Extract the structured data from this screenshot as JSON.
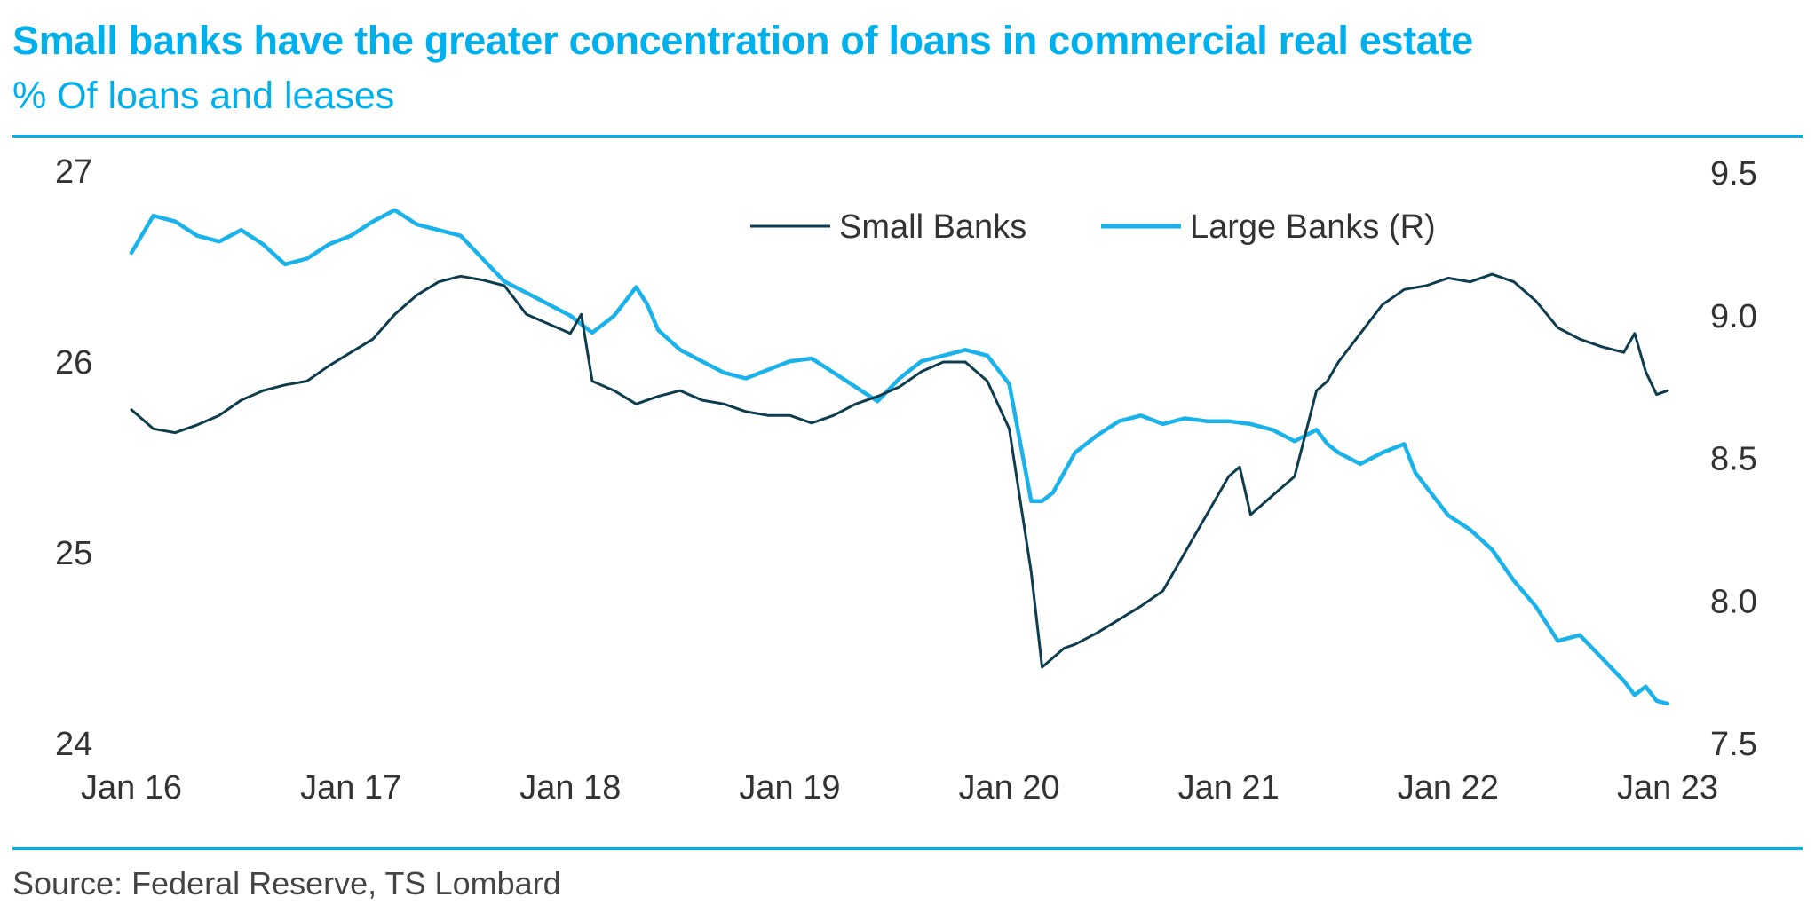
{
  "header": {
    "title": "Small banks have the greater concentration of loans in commercial real estate",
    "subtitle": "% Of loans and leases"
  },
  "footer": {
    "source": "Source: Federal Reserve, TS Lombard"
  },
  "colors": {
    "accent": "#00b0ec",
    "small_banks": "#0e3d4f",
    "large_banks": "#1ab2ea",
    "text": "#333333"
  },
  "chart_data": {
    "type": "line",
    "title": "Small banks have the greater concentration of loans in commercial real estate",
    "subtitle": "% Of loans and leases",
    "grid": false,
    "legend": {
      "placement": "top-center",
      "entries": [
        "Small Banks",
        "Large Banks (R)"
      ]
    },
    "x_axis": {
      "start": 2016.0,
      "end": 2023.0,
      "ticks": [
        2016,
        2017,
        2018,
        2019,
        2020,
        2021,
        2022,
        2023
      ],
      "tick_labels": [
        "Jan 16",
        "Jan 17",
        "Jan 18",
        "Jan 19",
        "Jan 20",
        "Jan 21",
        "Jan 22",
        "Jan 23"
      ]
    },
    "y_left": {
      "range": [
        24,
        27
      ],
      "ticks": [
        24,
        25,
        26,
        27
      ],
      "tick_labels": [
        "24",
        "25",
        "26",
        "27"
      ]
    },
    "y_right": {
      "range": [
        7.5,
        9.5
      ],
      "ticks": [
        7.5,
        8.0,
        8.5,
        9.0,
        9.5
      ],
      "tick_labels": [
        "7.5",
        "8.0",
        "8.5",
        "9.0",
        "9.5"
      ]
    },
    "series": [
      {
        "name": "Small Banks",
        "axis": "left",
        "x": [
          2016.0,
          2016.1,
          2016.2,
          2016.3,
          2016.4,
          2016.5,
          2016.6,
          2016.7,
          2016.8,
          2016.9,
          2017.0,
          2017.1,
          2017.2,
          2017.3,
          2017.4,
          2017.5,
          2017.6,
          2017.7,
          2017.8,
          2017.9,
          2018.0,
          2018.05,
          2018.1,
          2018.2,
          2018.3,
          2018.4,
          2018.5,
          2018.6,
          2018.7,
          2018.8,
          2018.9,
          2019.0,
          2019.1,
          2019.2,
          2019.3,
          2019.4,
          2019.5,
          2019.6,
          2019.7,
          2019.8,
          2019.9,
          2020.0,
          2020.1,
          2020.15,
          2020.2,
          2020.25,
          2020.3,
          2020.4,
          2020.5,
          2020.6,
          2020.7,
          2020.8,
          2020.9,
          2021.0,
          2021.05,
          2021.1,
          2021.15,
          2021.2,
          2021.3,
          2021.4,
          2021.45,
          2021.5,
          2021.6,
          2021.7,
          2021.8,
          2021.9,
          2022.0,
          2022.1,
          2022.2,
          2022.3,
          2022.4,
          2022.5,
          2022.6,
          2022.7,
          2022.8,
          2022.85,
          2022.9,
          2022.95,
          2023.0
        ],
        "values": [
          25.75,
          25.65,
          25.63,
          25.67,
          25.72,
          25.8,
          25.85,
          25.88,
          25.9,
          25.98,
          26.05,
          26.12,
          26.25,
          26.35,
          26.42,
          26.45,
          26.43,
          26.4,
          26.25,
          26.2,
          26.15,
          26.25,
          25.9,
          25.85,
          25.78,
          25.82,
          25.85,
          25.8,
          25.78,
          25.74,
          25.72,
          25.72,
          25.68,
          25.72,
          25.78,
          25.82,
          25.87,
          25.95,
          26.0,
          26.0,
          25.9,
          25.65,
          24.9,
          24.4,
          24.45,
          24.5,
          24.52,
          24.58,
          24.65,
          24.72,
          24.8,
          25.0,
          25.2,
          25.4,
          25.45,
          25.2,
          25.25,
          25.3,
          25.4,
          25.85,
          25.9,
          26.0,
          26.15,
          26.3,
          26.38,
          26.4,
          26.44,
          26.42,
          26.46,
          26.42,
          26.32,
          26.18,
          26.12,
          26.08,
          26.05,
          26.15,
          25.95,
          25.83,
          25.85
        ]
      },
      {
        "name": "Large Banks (R)",
        "axis": "right",
        "x": [
          2016.0,
          2016.1,
          2016.2,
          2016.3,
          2016.4,
          2016.5,
          2016.6,
          2016.7,
          2016.8,
          2016.9,
          2017.0,
          2017.1,
          2017.2,
          2017.3,
          2017.4,
          2017.5,
          2017.6,
          2017.7,
          2017.8,
          2017.9,
          2018.0,
          2018.1,
          2018.2,
          2018.3,
          2018.35,
          2018.4,
          2018.5,
          2018.6,
          2018.7,
          2018.8,
          2018.9,
          2019.0,
          2019.1,
          2019.2,
          2019.3,
          2019.4,
          2019.5,
          2019.6,
          2019.7,
          2019.8,
          2019.9,
          2020.0,
          2020.1,
          2020.15,
          2020.2,
          2020.25,
          2020.3,
          2020.4,
          2020.5,
          2020.6,
          2020.7,
          2020.8,
          2020.9,
          2021.0,
          2021.1,
          2021.2,
          2021.3,
          2021.4,
          2021.45,
          2021.5,
          2021.6,
          2021.7,
          2021.8,
          2021.85,
          2021.9,
          2022.0,
          2022.1,
          2022.2,
          2022.3,
          2022.4,
          2022.5,
          2022.6,
          2022.7,
          2022.8,
          2022.85,
          2022.9,
          2022.95,
          2023.0
        ],
        "values": [
          9.22,
          9.35,
          9.33,
          9.28,
          9.26,
          9.3,
          9.25,
          9.18,
          9.2,
          9.25,
          9.28,
          9.33,
          9.37,
          9.32,
          9.3,
          9.28,
          9.2,
          9.12,
          9.08,
          9.04,
          9.0,
          8.94,
          9.0,
          9.1,
          9.04,
          8.95,
          8.88,
          8.84,
          8.8,
          8.78,
          8.81,
          8.84,
          8.85,
          8.8,
          8.75,
          8.7,
          8.78,
          8.84,
          8.86,
          8.88,
          8.86,
          8.76,
          8.35,
          8.35,
          8.38,
          8.45,
          8.52,
          8.58,
          8.63,
          8.65,
          8.62,
          8.64,
          8.63,
          8.63,
          8.62,
          8.6,
          8.56,
          8.6,
          8.55,
          8.52,
          8.48,
          8.52,
          8.55,
          8.45,
          8.4,
          8.3,
          8.25,
          8.18,
          8.07,
          7.98,
          7.86,
          7.88,
          7.8,
          7.72,
          7.67,
          7.7,
          7.65,
          7.64
        ]
      }
    ]
  }
}
